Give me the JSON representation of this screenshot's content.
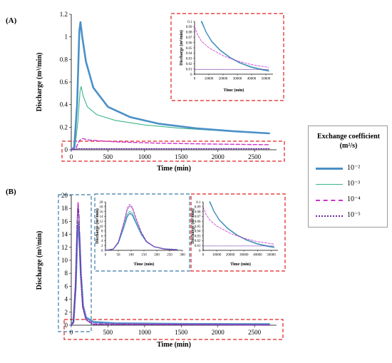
{
  "colors": {
    "s1": "#4a90c8",
    "s2": "#3cb68a",
    "s3": "#cc33cc",
    "s4": "#6a2aa0",
    "red_box": "#e02020",
    "blue_box": "#3a7aa8"
  },
  "legend": {
    "title_line1": "Exchange coefficient",
    "title_line2": "(m²/s)",
    "entries": [
      "10⁻²",
      "10⁻³",
      "10⁻⁴",
      "10⁻⁵"
    ]
  },
  "chart_data": [
    {
      "panel": "(A)",
      "type": "line",
      "xlabel": "Time (min)",
      "ylabel": "Discharge (m³/min)",
      "xlim": [
        0,
        2800
      ],
      "ylim": [
        0,
        1.2
      ],
      "xticks": [
        0,
        500,
        1000,
        1500,
        2000,
        2500
      ],
      "yticks": [
        0,
        0.2,
        0.4,
        0.6,
        0.8,
        1,
        1.2
      ],
      "ytick_labels": [
        "0",
        "0.2",
        "0.4",
        "0.6",
        "0.8",
        "1",
        "1.2"
      ],
      "series": [
        {
          "name": "10⁻²",
          "x": [
            0,
            40,
            80,
            110,
            125,
            150,
            200,
            300,
            500,
            800,
            1200,
            1700,
            2200,
            2700
          ],
          "y": [
            0,
            0.02,
            0.4,
            1.05,
            1.13,
            1.0,
            0.78,
            0.55,
            0.38,
            0.29,
            0.23,
            0.19,
            0.165,
            0.145
          ]
        },
        {
          "name": "10⁻³",
          "x": [
            0,
            50,
            90,
            120,
            135,
            160,
            220,
            350,
            600,
            1000,
            1500,
            2000,
            2700
          ],
          "y": [
            0,
            0.02,
            0.25,
            0.52,
            0.56,
            0.48,
            0.38,
            0.31,
            0.26,
            0.22,
            0.19,
            0.17,
            0.145
          ]
        },
        {
          "name": "10⁻⁴",
          "x": [
            0,
            60,
            110,
            150,
            250,
            600,
            1200,
            2000,
            2700
          ],
          "y": [
            0,
            0.01,
            0.08,
            0.1,
            0.085,
            0.07,
            0.058,
            0.05,
            0.045
          ]
        },
        {
          "name": "10⁻⁵",
          "x": [
            0,
            100,
            200,
            2700
          ],
          "y": [
            0,
            0.009,
            0.009,
            0.009
          ]
        }
      ]
    },
    {
      "panel": "(A) inset",
      "type": "line",
      "xlabel": "Time (min)",
      "ylabel": "Discharge (m³/min)",
      "xlim": [
        0,
        55000
      ],
      "ylim": [
        0,
        0.1
      ],
      "xticks": [
        0,
        10000,
        20000,
        30000,
        40000,
        50000
      ],
      "yticks": [
        0,
        0.01,
        0.02,
        0.03,
        0.04,
        0.05,
        0.06,
        0.07,
        0.08,
        0.09,
        0.1
      ],
      "ytick_labels": [
        "0",
        "0.01",
        "0.02",
        "0.03",
        "0.04",
        "0.05",
        "0.06",
        "0.07",
        "0.08",
        "0.09",
        "0.1"
      ],
      "series": [
        {
          "name": "10⁻²",
          "x": [
            5000,
            8000,
            12000,
            18000,
            25000,
            32000,
            40000,
            48000,
            52000
          ],
          "y": [
            0.1,
            0.08,
            0.062,
            0.045,
            0.031,
            0.021,
            0.013,
            0.008,
            0.006
          ]
        },
        {
          "name": "10⁻³",
          "x": [
            4500,
            8000,
            12000,
            18000,
            25000,
            32000,
            40000,
            48000,
            52000
          ],
          "y": [
            0.1,
            0.08,
            0.063,
            0.046,
            0.032,
            0.022,
            0.014,
            0.009,
            0.007
          ]
        },
        {
          "name": "10⁻⁴",
          "x": [
            0,
            2000,
            5000,
            10000,
            20000,
            30000,
            40000,
            52000
          ],
          "y": [
            0.09,
            0.075,
            0.062,
            0.05,
            0.035,
            0.025,
            0.018,
            0.013
          ]
        },
        {
          "name": "10⁻⁵",
          "x": [
            0,
            52000
          ],
          "y": [
            0.009,
            0.009
          ]
        }
      ]
    },
    {
      "panel": "(B)",
      "type": "line",
      "xlabel": "Time (min)",
      "ylabel": "Discharge (m³/min)",
      "xlim": [
        0,
        2800
      ],
      "ylim": [
        0,
        20
      ],
      "xticks": [
        0,
        500,
        1000,
        1500,
        2000,
        2500
      ],
      "yticks": [
        0,
        2,
        4,
        6,
        8,
        10,
        12,
        14,
        16,
        18,
        20
      ],
      "ytick_labels": [
        "0",
        "2",
        "4",
        "6",
        "8",
        "10",
        "12",
        "14",
        "16",
        "18",
        "20"
      ],
      "series": [
        {
          "name": "10⁻²",
          "x": [
            0,
            30,
            60,
            80,
            95,
            110,
            130,
            160,
            200,
            300,
            600,
            1500,
            2700
          ],
          "y": [
            0,
            0.5,
            6,
            13,
            15.5,
            14,
            8,
            3,
            1.2,
            0.5,
            0.3,
            0.2,
            0.15
          ]
        },
        {
          "name": "10⁻³",
          "x": [
            0,
            30,
            60,
            80,
            95,
            110,
            130,
            160,
            200,
            300,
            600,
            1500,
            2700
          ],
          "y": [
            0,
            0.5,
            6.2,
            13.5,
            16,
            14.5,
            8.2,
            3.1,
            1.2,
            0.4,
            0.25,
            0.18,
            0.14
          ]
        },
        {
          "name": "10⁻⁴",
          "x": [
            0,
            30,
            60,
            80,
            92,
            105,
            125,
            155,
            200,
            300,
            2700
          ],
          "y": [
            0,
            0.5,
            7,
            16,
            19,
            17,
            9,
            3,
            0.9,
            0.2,
            0.05
          ]
        },
        {
          "name": "10⁻⁵",
          "x": [
            0,
            30,
            60,
            80,
            92,
            105,
            125,
            155,
            200,
            300,
            2700
          ],
          "y": [
            0,
            0.5,
            6.8,
            15.5,
            18.3,
            16.5,
            8.5,
            2.8,
            0.8,
            0.1,
            0.01
          ]
        }
      ]
    },
    {
      "panel": "(B) inset left",
      "type": "line",
      "xlabel": "Time (min)",
      "ylabel": "Discharge (m³/min)",
      "xlim": [
        0,
        300
      ],
      "ylim": [
        0,
        20
      ],
      "xticks": [
        0,
        50,
        100,
        150,
        200,
        250,
        300
      ],
      "yticks": [
        0,
        2,
        4,
        6,
        8,
        10,
        12,
        14,
        16,
        18,
        20
      ],
      "ytick_labels": [
        "0",
        "2",
        "4",
        "6",
        "8",
        "10",
        "12",
        "14",
        "16",
        "18",
        "20"
      ],
      "series": [
        {
          "name": "10⁻²",
          "x": [
            0,
            30,
            50,
            70,
            85,
            95,
            105,
            120,
            140,
            160,
            190,
            230,
            280
          ],
          "y": [
            0,
            0.5,
            3,
            9,
            14,
            15.3,
            14.5,
            11,
            6.5,
            3.5,
            1.5,
            0.6,
            0.3
          ]
        },
        {
          "name": "10⁻³",
          "x": [
            0,
            30,
            50,
            70,
            85,
            95,
            105,
            120,
            140,
            160,
            190,
            230,
            280
          ],
          "y": [
            0,
            0.5,
            3.2,
            9.5,
            15,
            16.2,
            15.3,
            11.5,
            6.8,
            3.6,
            1.5,
            0.6,
            0.3
          ]
        },
        {
          "name": "10⁻⁴",
          "x": [
            0,
            30,
            50,
            70,
            85,
            95,
            105,
            120,
            140,
            160,
            190,
            230,
            280
          ],
          "y": [
            0,
            0.5,
            3.5,
            11,
            17.5,
            19,
            17.8,
            13,
            7.5,
            3.8,
            1.5,
            0.5,
            0.2
          ]
        },
        {
          "name": "10⁻⁵",
          "x": [
            0,
            30,
            50,
            70,
            85,
            95,
            105,
            120,
            140,
            160,
            190,
            230,
            280
          ],
          "y": [
            0,
            0.5,
            3.4,
            10.5,
            16.8,
            18.3,
            17.2,
            12.6,
            7.2,
            3.6,
            1.4,
            0.4,
            0.1
          ]
        }
      ]
    },
    {
      "panel": "(B) inset right",
      "type": "line",
      "xlabel": "Time (min)",
      "ylabel": "Discharge (m³/min)",
      "xlim": [
        0,
        55000
      ],
      "ylim": [
        0,
        0.1
      ],
      "xticks": [
        0,
        10000,
        20000,
        30000,
        40000,
        50000
      ],
      "yticks": [
        0,
        0.01,
        0.02,
        0.03,
        0.04,
        0.05,
        0.06,
        0.07,
        0.08,
        0.09,
        0.1
      ],
      "ytick_labels": [
        "0",
        "0.01",
        "0.02",
        "0.03",
        "0.04",
        "0.05",
        "0.06",
        "0.07",
        "0.08",
        "0.09",
        "0.1"
      ],
      "series": [
        {
          "name": "10⁻²",
          "x": [
            5000,
            8000,
            12000,
            18000,
            25000,
            32000,
            40000,
            48000,
            52000
          ],
          "y": [
            0.1,
            0.08,
            0.062,
            0.045,
            0.031,
            0.021,
            0.013,
            0.008,
            0.006
          ]
        },
        {
          "name": "10⁻³",
          "x": [
            4500,
            8000,
            12000,
            18000,
            25000,
            32000,
            40000,
            48000,
            52000
          ],
          "y": [
            0.1,
            0.08,
            0.063,
            0.046,
            0.032,
            0.022,
            0.014,
            0.009,
            0.007
          ]
        },
        {
          "name": "10⁻⁴",
          "x": [
            0,
            2000,
            5000,
            10000,
            20000,
            30000,
            40000,
            52000
          ],
          "y": [
            0.09,
            0.075,
            0.062,
            0.05,
            0.035,
            0.025,
            0.018,
            0.013
          ]
        },
        {
          "name": "10⁻⁵",
          "x": [
            0,
            52000
          ],
          "y": [
            0.009,
            0.009
          ]
        }
      ]
    }
  ]
}
